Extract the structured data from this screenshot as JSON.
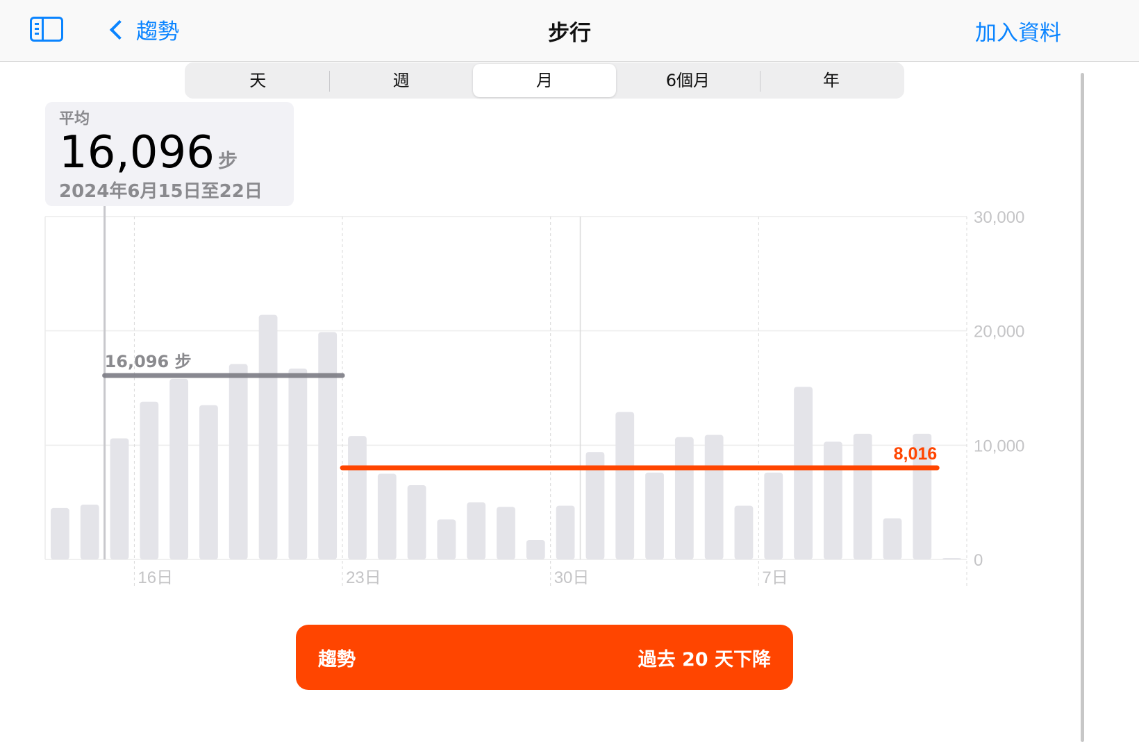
{
  "header": {
    "back_label": "趨勢",
    "title": "步行",
    "add_label": "加入資料"
  },
  "tabs": [
    {
      "label": "天"
    },
    {
      "label": "週"
    },
    {
      "label": "月",
      "selected": true
    },
    {
      "label": "6個月"
    },
    {
      "label": "年"
    }
  ],
  "summary": {
    "label": "平均",
    "value": "16,096",
    "unit": "步",
    "range": "2024年6月15日至22日"
  },
  "trend_banner": {
    "label": "趨勢",
    "text": "過去 20 天下降"
  },
  "colors": {
    "accent": "#0a84ff",
    "trend": "#ff4500",
    "bar": "#e4e4e9",
    "avg_line": "#7c7c84"
  },
  "chart_data": {
    "type": "bar",
    "x": [
      "6/13",
      "6/14",
      "6/15",
      "6/16",
      "6/17",
      "6/18",
      "6/19",
      "6/20",
      "6/21",
      "6/22",
      "6/23",
      "6/24",
      "6/25",
      "6/26",
      "6/27",
      "6/28",
      "6/29",
      "6/30",
      "7/1",
      "7/2",
      "7/3",
      "7/4",
      "7/5",
      "7/6",
      "7/7",
      "7/8",
      "7/9",
      "7/10",
      "7/11",
      "7/12",
      "7/13"
    ],
    "values": [
      4500,
      4800,
      10600,
      13800,
      15800,
      13500,
      17100,
      21400,
      16700,
      19900,
      10800,
      7500,
      6500,
      3500,
      5000,
      4600,
      1700,
      4700,
      9400,
      12900,
      7600,
      10700,
      10900,
      4700,
      7600,
      15100,
      10300,
      11000,
      3600,
      11000,
      50
    ],
    "x_tick_labels": [
      {
        "at": "6/16",
        "label": "16日"
      },
      {
        "at": "6/23",
        "label": "23日"
      },
      {
        "at": "6/30",
        "label": "30日"
      },
      {
        "at": "7/7",
        "label": "7日"
      }
    ],
    "y_ticks": [
      {
        "value": 0,
        "label": "0"
      },
      {
        "value": 10000,
        "label": "10,000"
      },
      {
        "value": 20000,
        "label": "20,000"
      },
      {
        "value": 30000,
        "label": "30,000"
      }
    ],
    "ylim": [
      0,
      30000
    ],
    "grid": true,
    "annotations": [
      {
        "type": "avg",
        "from": "6/15",
        "to": "6/22",
        "value": 16096,
        "label": "16,096 步",
        "color": "#7c7c84"
      },
      {
        "type": "trend",
        "from": "6/23",
        "to": "7/12",
        "value": 8016,
        "label": "8,016",
        "color": "#ff4500"
      }
    ],
    "selected_range": {
      "from": "6/15",
      "to": "6/22"
    }
  }
}
